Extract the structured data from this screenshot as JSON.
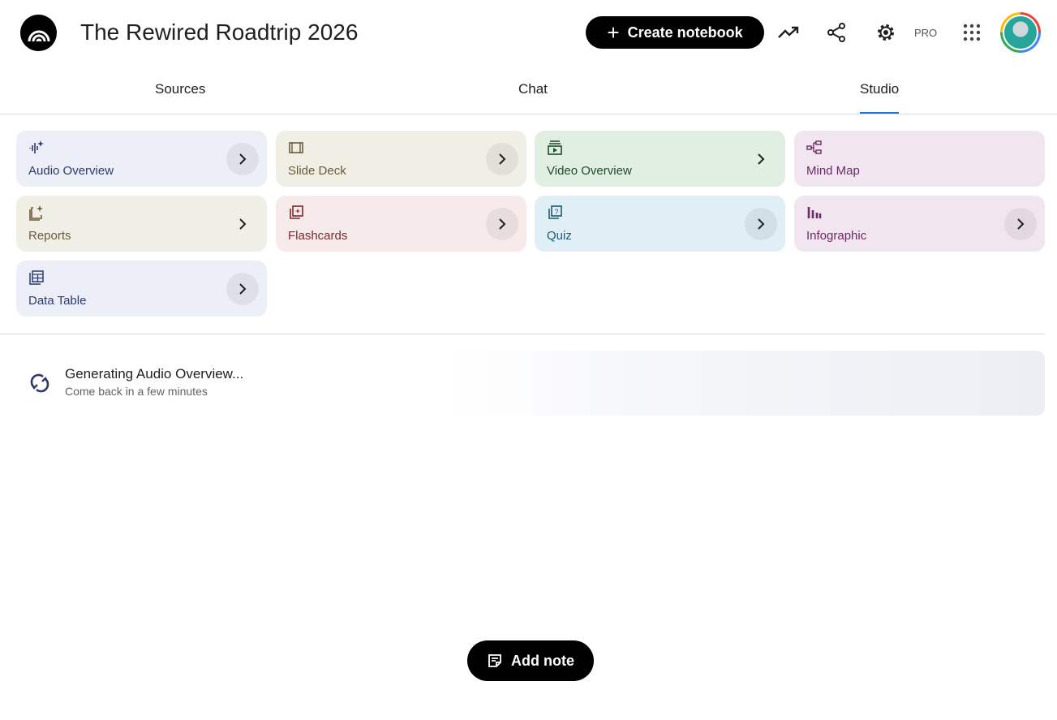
{
  "header": {
    "title": "The Rewired Roadtrip 2026",
    "create_label": "Create notebook",
    "pro_label": "PRO"
  },
  "tabs": [
    {
      "label": "Sources"
    },
    {
      "label": "Chat"
    },
    {
      "label": "Studio",
      "active": true
    }
  ],
  "studio": {
    "cards": [
      {
        "label": "Audio Overview",
        "icon": "audio-sparkle-icon",
        "bg": "#eceef8",
        "fg": "#2d3a6b"
      },
      {
        "label": "Slide Deck",
        "icon": "slides-icon",
        "bg": "#f0efe6",
        "fg": "#6b5a3a"
      },
      {
        "label": "Video Overview",
        "icon": "video-icon",
        "bg": "#e1efe3",
        "fg": "#1f4a2a"
      },
      {
        "label": "Mind Map",
        "icon": "mind-map-icon",
        "bg": "#f1e6f0",
        "fg": "#6b2a66"
      },
      {
        "label": "Reports",
        "icon": "reports-icon",
        "bg": "#f0efe6",
        "fg": "#6b5a3a"
      },
      {
        "label": "Flashcards",
        "icon": "flashcards-icon",
        "bg": "#f6ebea",
        "fg": "#7a2a2a"
      },
      {
        "label": "Quiz",
        "icon": "quiz-icon",
        "bg": "#dfeff5",
        "fg": "#1d5a78"
      },
      {
        "label": "Infographic",
        "icon": "infographic-icon",
        "bg": "#f1e6f0",
        "fg": "#6b2a66"
      },
      {
        "label": "Data Table",
        "icon": "table-icon",
        "bg": "#eceef8",
        "fg": "#2d3a6b"
      }
    ]
  },
  "generating": {
    "title": "Generating Audio Overview...",
    "subtitle": "Come back in a few minutes"
  },
  "add_note_label": "Add note"
}
